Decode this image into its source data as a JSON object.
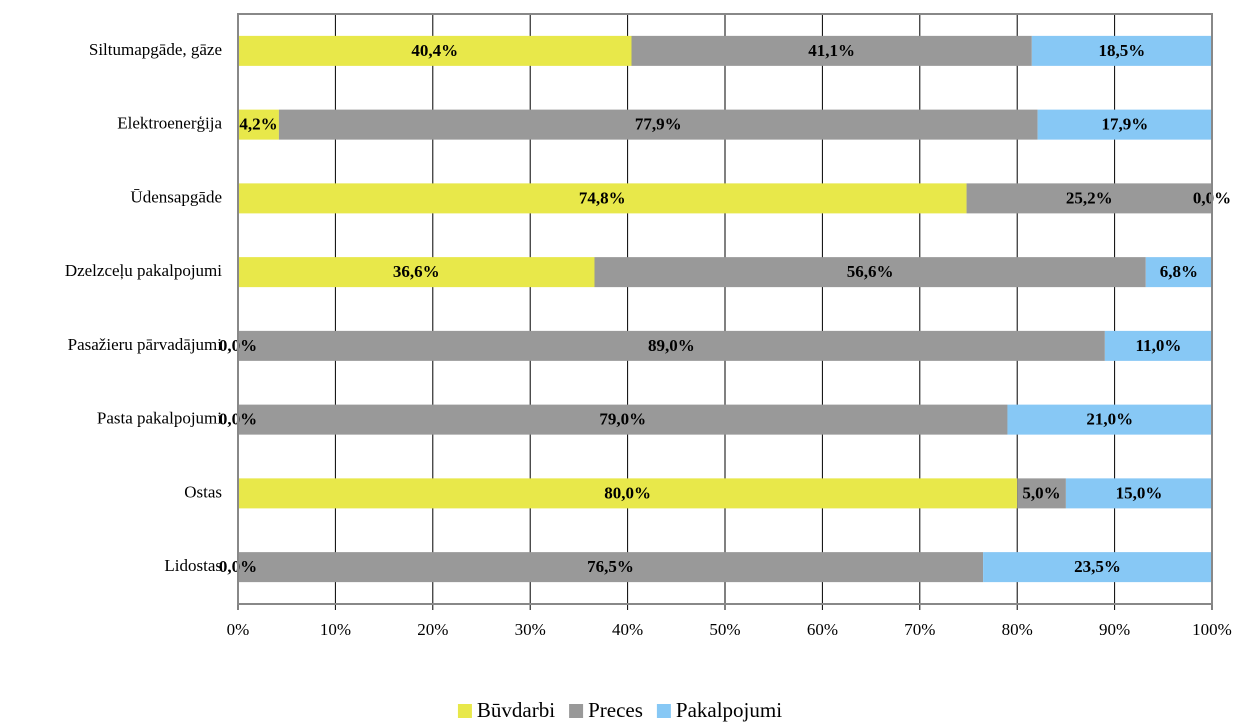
{
  "chart_data": {
    "type": "stacked-bar-horizontal",
    "categories": [
      "Siltumapgāde, gāze",
      "Elektroenerģija",
      "Ūdensapgāde",
      "Dzelzceļu pakalpojumi",
      "Pasažieru pārvadājumi",
      "Pasta pakalpojumi",
      "Ostas",
      "Lidostas"
    ],
    "series": [
      {
        "name": "Būvdarbi",
        "color": "#e8e84a",
        "values": [
          40.4,
          4.2,
          74.8,
          36.6,
          0,
          0,
          80,
          0
        ],
        "value_labels": [
          "40,4%",
          "4,2%",
          "74,8%",
          "36,6%",
          "0,0%",
          "0,0%",
          "80,0%",
          "0,0%"
        ]
      },
      {
        "name": "Preces",
        "color": "#999999",
        "values": [
          41.1,
          77.9,
          25.2,
          56.6,
          89,
          79,
          5,
          76.5
        ],
        "value_labels": [
          "41,1%",
          "77,9%",
          "25,2%",
          "56,6%",
          "89,0%",
          "79,0%",
          "5,0%",
          "76,5%"
        ]
      },
      {
        "name": "Pakalpojumi",
        "color": "#87c8f5",
        "values": [
          18.5,
          17.9,
          0,
          6.8,
          11,
          21,
          15,
          23.5
        ],
        "value_labels": [
          "18,5%",
          "17,9%",
          "0,0%",
          "6,8%",
          "11,0%",
          "21,0%",
          "15,0%",
          "23,5%"
        ]
      }
    ],
    "xlim": [
      0,
      100
    ],
    "xticks": [
      {
        "value": 0,
        "label": "0%"
      },
      {
        "value": 10,
        "label": "10%"
      },
      {
        "value": 20,
        "label": "20%"
      },
      {
        "value": 30,
        "label": "30%"
      },
      {
        "value": 40,
        "label": "40%"
      },
      {
        "value": 50,
        "label": "50%"
      },
      {
        "value": 60,
        "label": "60%"
      },
      {
        "value": 70,
        "label": "70%"
      },
      {
        "value": 80,
        "label": "80%"
      },
      {
        "value": 90,
        "label": "90%"
      },
      {
        "value": 100,
        "label": "100%"
      }
    ],
    "grid": true,
    "legend": "bottom"
  }
}
